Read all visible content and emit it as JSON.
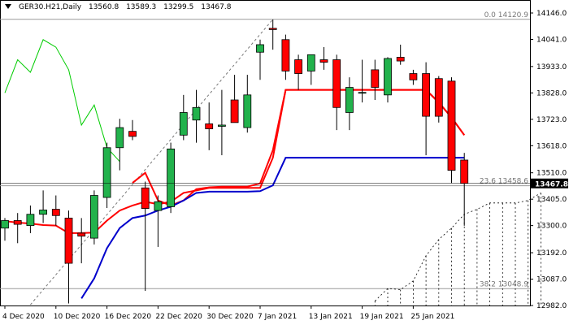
{
  "header": {
    "symbol_timeframe": "GER30.H21,Daily",
    "open": "13560.8",
    "high": "13589.3",
    "low": "13299.5",
    "close": "13467.8"
  },
  "current_price": "13467.8",
  "colors": {
    "bull": "#22b24c",
    "bear": "#ff0000",
    "red_ma": "#ff0000",
    "blue_ma": "#0000cc",
    "green_line": "#00cc00",
    "grid": "#8c8c8c",
    "fib": "#9a9a9a",
    "price_tag_bg": "#000000"
  },
  "chart_data": {
    "type": "candlestick",
    "title": "GER30.H21,Daily",
    "ylim": [
      12982.0,
      14146.0
    ],
    "y_ticks": [
      "14146.0",
      "14041.0",
      "13933.0",
      "13828.0",
      "13723.0",
      "13618.0",
      "13510.0",
      "13405.0",
      "13300.0",
      "13192.0",
      "13087.0",
      "12982.0"
    ],
    "x_labels": [
      {
        "label": "4 Dec 2020",
        "index": 0
      },
      {
        "label": "10 Dec 2020",
        "index": 4
      },
      {
        "label": "16 Dec 2020",
        "index": 8
      },
      {
        "label": "22 Dec 2020",
        "index": 12
      },
      {
        "label": "30 Dec 2020",
        "index": 16
      },
      {
        "label": "7 Jan 2021",
        "index": 20
      },
      {
        "label": "13 Jan 2021",
        "index": 24
      },
      {
        "label": "19 Jan 2021",
        "index": 28
      },
      {
        "label": "25 Jan 2021",
        "index": 32
      }
    ],
    "candles": [
      {
        "o": 13290,
        "h": 13330,
        "l": 13240,
        "c": 13320
      },
      {
        "o": 13320,
        "h": 13350,
        "l": 13230,
        "c": 13305
      },
      {
        "o": 13300,
        "h": 13380,
        "l": 13270,
        "c": 13345
      },
      {
        "o": 13345,
        "h": 13440,
        "l": 13310,
        "c": 13362
      },
      {
        "o": 13365,
        "h": 13420,
        "l": 13300,
        "c": 13340
      },
      {
        "o": 13330,
        "h": 13360,
        "l": 12990,
        "c": 13150
      },
      {
        "o": 13270,
        "h": 13330,
        "l": 13150,
        "c": 13258
      },
      {
        "o": 13250,
        "h": 13440,
        "l": 13225,
        "c": 13420
      },
      {
        "o": 13412,
        "h": 13630,
        "l": 13370,
        "c": 13610
      },
      {
        "o": 13610,
        "h": 13725,
        "l": 13520,
        "c": 13690
      },
      {
        "o": 13675,
        "h": 13720,
        "l": 13640,
        "c": 13655
      },
      {
        "o": 13450,
        "h": 13475,
        "l": 13040,
        "c": 13368
      },
      {
        "o": 13360,
        "h": 13420,
        "l": 13215,
        "c": 13395
      },
      {
        "o": 13375,
        "h": 13630,
        "l": 13350,
        "c": 13605
      },
      {
        "o": 13660,
        "h": 13820,
        "l": 13640,
        "c": 13750
      },
      {
        "o": 13720,
        "h": 13840,
        "l": 13630,
        "c": 13770
      },
      {
        "o": 13705,
        "h": 13790,
        "l": 13600,
        "c": 13685
      },
      {
        "o": 13695,
        "h": 13840,
        "l": 13580,
        "c": 13700
      },
      {
        "o": 13800,
        "h": 13900,
        "l": 13710,
        "c": 13710
      },
      {
        "o": 13690,
        "h": 13900,
        "l": 13670,
        "c": 13820
      },
      {
        "o": 13990,
        "h": 14040,
        "l": 13880,
        "c": 14020
      },
      {
        "o": 14085,
        "h": 14120,
        "l": 14000,
        "c": 14080
      },
      {
        "o": 14040,
        "h": 14060,
        "l": 13880,
        "c": 13915
      },
      {
        "o": 13960,
        "h": 13980,
        "l": 13840,
        "c": 13905
      },
      {
        "o": 13915,
        "h": 13970,
        "l": 13860,
        "c": 13980
      },
      {
        "o": 13960,
        "h": 14010,
        "l": 13920,
        "c": 13950
      },
      {
        "o": 13960,
        "h": 13980,
        "l": 13680,
        "c": 13770
      },
      {
        "o": 13750,
        "h": 13890,
        "l": 13680,
        "c": 13850
      },
      {
        "o": 13830,
        "h": 13960,
        "l": 13790,
        "c": 13830
      },
      {
        "o": 13920,
        "h": 13960,
        "l": 13800,
        "c": 13850
      },
      {
        "o": 13820,
        "h": 13970,
        "l": 13790,
        "c": 13965
      },
      {
        "o": 13970,
        "h": 14020,
        "l": 13940,
        "c": 13955
      },
      {
        "o": 13905,
        "h": 13920,
        "l": 13860,
        "c": 13880
      },
      {
        "o": 13905,
        "h": 13950,
        "l": 13580,
        "c": 13735
      },
      {
        "o": 13885,
        "h": 13895,
        "l": 13710,
        "c": 13735
      },
      {
        "o": 13875,
        "h": 13890,
        "l": 13470,
        "c": 13520
      },
      {
        "o": 13560.8,
        "h": 13589.3,
        "l": 13299.5,
        "c": 13467.8
      }
    ],
    "series": [
      {
        "values": [
          null,
          null,
          null,
          null,
          null,
          null,
          null,
          null,
          null,
          null,
          13470,
          13510,
          13400,
          13380,
          13400,
          13445,
          13452,
          13455,
          13455,
          13455,
          13468,
          13600,
          13840,
          13840,
          13840,
          13840,
          13840,
          13840,
          13840,
          13840,
          13840,
          13840,
          13840,
          13840,
          13790,
          13730,
          13660
        ]
      },
      {
        "values": [
          13318,
          13312,
          13308,
          13302,
          13300,
          13270,
          13270,
          13272,
          13320,
          13360,
          13380,
          13395,
          13385,
          13395,
          13430,
          13440,
          13450,
          13450,
          13450,
          13450,
          13450,
          13570,
          13840,
          13840,
          13840,
          13840,
          13840,
          13840,
          13840,
          13840,
          13840,
          13840,
          13840,
          13840,
          13790,
          13730,
          13660
        ]
      },
      {
        "values": [
          null,
          null,
          null,
          null,
          null,
          null,
          13010,
          13090,
          13210,
          13290,
          13330,
          13340,
          13360,
          13375,
          13400,
          13430,
          13435,
          13435,
          13435,
          13435,
          13437,
          13460,
          13570,
          13570,
          13570,
          13570,
          13570,
          13570,
          13570,
          13570,
          13570,
          13570,
          13570,
          13570,
          13570,
          13570,
          13570
        ]
      },
      {
        "values": [
          13828,
          13960,
          13910,
          14040,
          14010,
          13920,
          13700,
          13780,
          13610,
          13555,
          null,
          null,
          null,
          null,
          null,
          null,
          null,
          null,
          null,
          null,
          null,
          null,
          null,
          null,
          null,
          null,
          null,
          null,
          null,
          null,
          null,
          null,
          null,
          null,
          null,
          null,
          null
        ]
      }
    ],
    "fib_levels": [
      {
        "label": "0.0 14120.9",
        "value": 14120.9
      },
      {
        "label": "23.6 13458.6",
        "value": 13458.6
      },
      {
        "label": "38.2 13048.9",
        "value": 13048.9
      }
    ],
    "trendline": {
      "from": {
        "index": 2,
        "value": 12985
      },
      "to": {
        "index": 21,
        "value": 14120.9
      }
    },
    "projection": {
      "from_index": 29,
      "values": [
        13000,
        13050,
        13045,
        13080,
        13180,
        13245,
        13290,
        13345,
        13365,
        13390,
        13390,
        13390,
        13400,
        13430
      ]
    }
  }
}
